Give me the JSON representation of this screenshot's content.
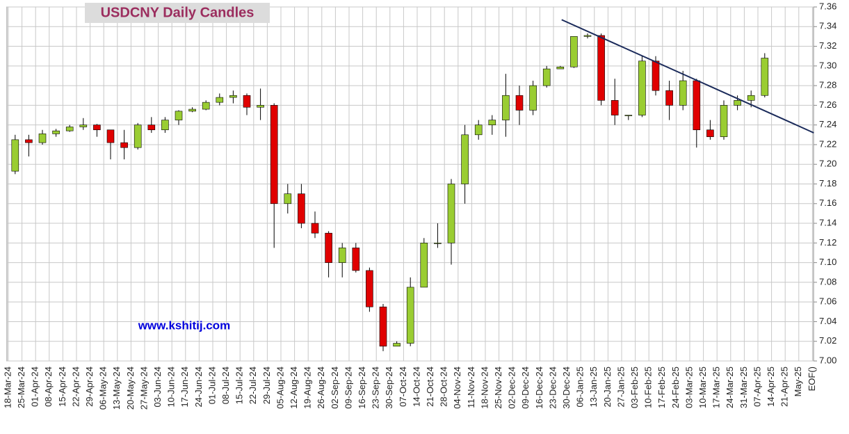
{
  "chart_data": {
    "type": "candlestick",
    "title": "USDCNY Daily Candles",
    "annotation": "www.kshitij.com",
    "categories": [
      "18-Mar-24",
      "25-Mar-24",
      "01-Apr-24",
      "08-Apr-24",
      "15-Apr-24",
      "22-Apr-24",
      "29-Apr-24",
      "06-May-24",
      "13-May-24",
      "20-May-24",
      "27-May-24",
      "03-Jun-24",
      "10-Jun-24",
      "17-Jun-24",
      "24-Jun-24",
      "01-Jul-24",
      "08-Jul-24",
      "15-Jul-24",
      "22-Jul-24",
      "29-Jul-24",
      "05-Aug-24",
      "12-Aug-24",
      "19-Aug-24",
      "26-Aug-24",
      "02-Sep-24",
      "09-Sep-24",
      "16-Sep-24",
      "23-Sep-24",
      "30-Sep-24",
      "07-Oct-24",
      "14-Oct-24",
      "21-Oct-24",
      "28-Oct-24",
      "04-Nov-24",
      "11-Nov-24",
      "18-Nov-24",
      "25-Nov-24",
      "02-Dec-24",
      "09-Dec-24",
      "16-Dec-24",
      "23-Dec-24",
      "30-Dec-24",
      "06-Jan-25",
      "13-Jan-25",
      "20-Jan-25",
      "27-Jan-25",
      "03-Feb-25",
      "10-Feb-25",
      "17-Feb-25",
      "24-Feb-25",
      "03-Mar-25",
      "10-Mar-25",
      "17-Mar-25",
      "24-Mar-25",
      "31-Mar-25",
      "07-Apr-25",
      "14-Apr-25",
      "21-Apr-25",
      "May-25",
      "EOF()"
    ],
    "open": [
      7.193,
      7.225,
      7.222,
      7.231,
      7.234,
      7.238,
      7.24,
      7.235,
      7.222,
      7.217,
      7.24,
      7.235,
      7.245,
      7.254,
      7.256,
      7.263,
      7.268,
      7.27,
      7.258,
      7.26,
      7.16,
      7.17,
      7.14,
      7.13,
      7.1,
      7.115,
      7.092,
      7.055,
      7.015,
      7.018,
      7.075,
      7.12,
      7.12,
      7.18,
      7.23,
      7.24,
      7.245,
      7.27,
      7.255,
      7.28,
      7.297,
      7.299,
      7.33,
      7.331,
      7.265,
      7.25,
      7.25,
      7.305,
      7.275,
      7.26,
      7.285,
      7.235,
      7.228,
      7.26,
      7.265,
      7.27,
      null,
      null,
      null,
      null
    ],
    "high": [
      7.23,
      7.23,
      7.235,
      7.236,
      7.24,
      7.247,
      7.241,
      7.235,
      7.235,
      7.242,
      7.248,
      7.248,
      7.255,
      7.258,
      7.265,
      7.272,
      7.275,
      7.272,
      7.277,
      7.262,
      7.18,
      7.18,
      7.152,
      7.132,
      7.12,
      7.12,
      7.095,
      7.058,
      7.02,
      7.085,
      7.125,
      7.14,
      7.185,
      7.24,
      7.245,
      7.25,
      7.292,
      7.28,
      7.285,
      7.3,
      7.3,
      7.33,
      7.333,
      7.333,
      7.287,
      7.25,
      7.31,
      7.31,
      7.285,
      7.295,
      7.287,
      7.245,
      7.265,
      7.27,
      7.275,
      7.313,
      null,
      null,
      null,
      null
    ],
    "low": [
      7.19,
      7.208,
      7.22,
      7.228,
      7.233,
      7.235,
      7.228,
      7.205,
      7.205,
      7.215,
      7.232,
      7.232,
      7.24,
      7.253,
      7.255,
      7.26,
      7.262,
      7.25,
      7.245,
      7.115,
      7.15,
      7.135,
      7.125,
      7.085,
      7.085,
      7.09,
      7.05,
      7.01,
      7.015,
      7.015,
      7.075,
      7.115,
      7.098,
      7.16,
      7.225,
      7.23,
      7.228,
      7.24,
      7.25,
      7.278,
      7.297,
      7.298,
      7.328,
      7.26,
      7.24,
      7.245,
      7.248,
      7.27,
      7.245,
      7.255,
      7.217,
      7.225,
      7.225,
      7.255,
      7.258,
      7.268,
      null,
      null,
      null,
      null
    ],
    "close": [
      7.225,
      7.222,
      7.231,
      7.234,
      7.238,
      7.24,
      7.235,
      7.222,
      7.217,
      7.24,
      7.235,
      7.245,
      7.254,
      7.256,
      7.263,
      7.268,
      7.27,
      7.258,
      7.26,
      7.16,
      7.17,
      7.14,
      7.13,
      7.1,
      7.115,
      7.092,
      7.055,
      7.015,
      7.018,
      7.075,
      7.12,
      7.12,
      7.18,
      7.23,
      7.24,
      7.245,
      7.27,
      7.255,
      7.28,
      7.297,
      7.299,
      7.33,
      7.331,
      7.265,
      7.25,
      7.25,
      7.305,
      7.275,
      7.26,
      7.285,
      7.235,
      7.228,
      7.26,
      7.265,
      7.27,
      7.308,
      null,
      null,
      null,
      null
    ],
    "up_color": "#9acd32",
    "down_color": "#e00000",
    "trendline": {
      "x": [
        40.6,
        59.1
      ],
      "y": [
        7.347,
        7.232
      ],
      "color": "#1a2a5a"
    },
    "ylim": [
      7.0,
      7.36
    ],
    "yticks": [
      {
        "value": 7.0,
        "label": "7.00"
      },
      7.02,
      7.04,
      7.06,
      7.08,
      {
        "value": 7.1,
        "label": "7.10"
      },
      7.12,
      7.14,
      7.16,
      7.18,
      {
        "value": 7.2,
        "label": "7.20"
      },
      7.22,
      7.24,
      7.26,
      7.28,
      {
        "value": 7.3,
        "label": "7.30"
      },
      7.32,
      7.34,
      7.36
    ],
    "grid": true
  }
}
